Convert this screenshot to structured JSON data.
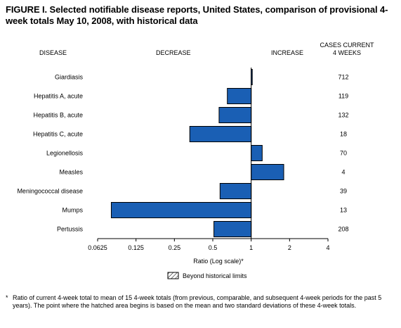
{
  "figure": {
    "title": "FIGURE I. Selected notifiable disease reports, United States, comparison of provisional 4-week totals May 10, 2008, with historical data",
    "footnote_mark": "*",
    "footnote": "Ratio of current 4-week total to mean of 15 4-week totals (from previous, comparable, and subsequent 4-week periods for the past 5 years). The point where the hatched area begins is based on the mean and two standard deviations of these 4-week totals."
  },
  "chart_data": {
    "type": "bar",
    "orientation": "horizontal",
    "headers": {
      "disease": "DISEASE",
      "decrease": "DECREASE",
      "increase": "INCREASE",
      "cases_line1": "CASES CURRENT",
      "cases_line2": "4 WEEKS"
    },
    "categories": [
      "Giardiasis",
      "Hepatitis A, acute",
      "Hepatitis B, acute",
      "Hepatitis C, acute",
      "Legionellosis",
      "Measles",
      "Meningococcal disease",
      "Mumps",
      "Pertussis"
    ],
    "values": [
      1.02,
      0.65,
      0.56,
      0.33,
      1.22,
      1.8,
      0.57,
      0.08,
      0.51
    ],
    "cases": [
      "712",
      "119",
      "132",
      "18",
      "70",
      "4",
      "39",
      "13",
      "208"
    ],
    "x_scale": "log",
    "xlim": [
      0.0625,
      4
    ],
    "x_ticks": [
      {
        "value": 0.0625,
        "label": "0.0625"
      },
      {
        "value": 0.125,
        "label": "0.125"
      },
      {
        "value": 0.25,
        "label": "0.25"
      },
      {
        "value": 0.5,
        "label": "0.5"
      },
      {
        "value": 1,
        "label": "1"
      },
      {
        "value": 2,
        "label": "2"
      },
      {
        "value": 4,
        "label": "4"
      }
    ],
    "xlabel": "Ratio (Log scale)*",
    "reference_value": 1,
    "bar_color": "#1a5fb4",
    "legend": {
      "label": "Beyond historical limits",
      "swatch": "hatched",
      "position": "bottom"
    },
    "grid": false
  }
}
